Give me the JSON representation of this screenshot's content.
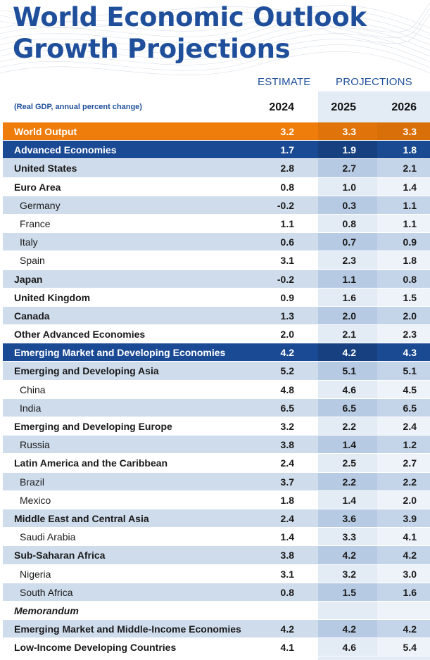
{
  "title": {
    "line1": "World Economic Outlook",
    "line2": "Growth Projections"
  },
  "headers": {
    "estimate": "ESTIMATE",
    "projections": "PROJECTIONS",
    "subtitle": "(Real GDP, annual percent change)",
    "years": [
      "2024",
      "2025",
      "2026"
    ]
  },
  "rows": [
    {
      "label": "World Output",
      "v": [
        "3.2",
        "3.3",
        "3.3"
      ],
      "style": "orange",
      "sub": false
    },
    {
      "label": "Advanced Economies",
      "v": [
        "1.7",
        "1.9",
        "1.8"
      ],
      "style": "navy",
      "sub": false
    },
    {
      "label": "United States",
      "v": [
        "2.8",
        "2.7",
        "2.1"
      ],
      "style": "shaded",
      "sub": false
    },
    {
      "label": "Euro Area",
      "v": [
        "0.8",
        "1.0",
        "1.4"
      ],
      "style": "plain",
      "sub": false
    },
    {
      "label": "Germany",
      "v": [
        "-0.2",
        "0.3",
        "1.1"
      ],
      "style": "shaded",
      "sub": true
    },
    {
      "label": "France",
      "v": [
        "1.1",
        "0.8",
        "1.1"
      ],
      "style": "plain",
      "sub": true
    },
    {
      "label": "Italy",
      "v": [
        "0.6",
        "0.7",
        "0.9"
      ],
      "style": "shaded",
      "sub": true
    },
    {
      "label": "Spain",
      "v": [
        "3.1",
        "2.3",
        "1.8"
      ],
      "style": "plain",
      "sub": true
    },
    {
      "label": "Japan",
      "v": [
        "-0.2",
        "1.1",
        "0.8"
      ],
      "style": "shaded",
      "sub": false
    },
    {
      "label": "United Kingdom",
      "v": [
        "0.9",
        "1.6",
        "1.5"
      ],
      "style": "plain",
      "sub": false
    },
    {
      "label": "Canada",
      "v": [
        "1.3",
        "2.0",
        "2.0"
      ],
      "style": "shaded",
      "sub": false
    },
    {
      "label": "Other Advanced Economies",
      "v": [
        "2.0",
        "2.1",
        "2.3"
      ],
      "style": "plain",
      "sub": false
    },
    {
      "label": "Emerging Market and Developing Economies",
      "v": [
        "4.2",
        "4.2",
        "4.3"
      ],
      "style": "navy",
      "sub": false
    },
    {
      "label": "Emerging and Developing Asia",
      "v": [
        "5.2",
        "5.1",
        "5.1"
      ],
      "style": "shaded",
      "sub": false
    },
    {
      "label": "China",
      "v": [
        "4.8",
        "4.6",
        "4.5"
      ],
      "style": "plain",
      "sub": true
    },
    {
      "label": "India",
      "v": [
        "6.5",
        "6.5",
        "6.5"
      ],
      "style": "shaded",
      "sub": true
    },
    {
      "label": "Emerging and Developing Europe",
      "v": [
        "3.2",
        "2.2",
        "2.4"
      ],
      "style": "plain",
      "sub": false
    },
    {
      "label": "Russia",
      "v": [
        "3.8",
        "1.4",
        "1.2"
      ],
      "style": "shaded",
      "sub": true
    },
    {
      "label": "Latin America and the Caribbean",
      "v": [
        "2.4",
        "2.5",
        "2.7"
      ],
      "style": "plain",
      "sub": false
    },
    {
      "label": "Brazil",
      "v": [
        "3.7",
        "2.2",
        "2.2"
      ],
      "style": "shaded",
      "sub": true
    },
    {
      "label": "Mexico",
      "v": [
        "1.8",
        "1.4",
        "2.0"
      ],
      "style": "plain",
      "sub": true
    },
    {
      "label": "Middle East and Central Asia",
      "v": [
        "2.4",
        "3.6",
        "3.9"
      ],
      "style": "shaded",
      "sub": false
    },
    {
      "label": "Saudi Arabia",
      "v": [
        "1.4",
        "3.3",
        "4.1"
      ],
      "style": "plain",
      "sub": true
    },
    {
      "label": "Sub-Saharan Africa",
      "v": [
        "3.8",
        "4.2",
        "4.2"
      ],
      "style": "shaded",
      "sub": false
    },
    {
      "label": "Nigeria",
      "v": [
        "3.1",
        "3.2",
        "3.0"
      ],
      "style": "plain",
      "sub": true
    },
    {
      "label": "South Africa",
      "v": [
        "0.8",
        "1.5",
        "1.6"
      ],
      "style": "shaded",
      "sub": true
    },
    {
      "label": "Memorandum",
      "v": [
        "",
        "",
        ""
      ],
      "style": "plain memo",
      "sub": false
    },
    {
      "label": "Emerging Market and Middle-Income Economies",
      "v": [
        "4.2",
        "4.2",
        "4.2"
      ],
      "style": "shaded",
      "sub": false
    },
    {
      "label": "Low-Income Developing Countries",
      "v": [
        "4.1",
        "4.6",
        "5.4"
      ],
      "style": "plain",
      "sub": false
    }
  ],
  "colors": {
    "title_blue": "#1f4f9b",
    "world_output_orange": "#ef7d0b",
    "group_navy": "#1b4a95",
    "row_shade": "#cfdcec"
  }
}
